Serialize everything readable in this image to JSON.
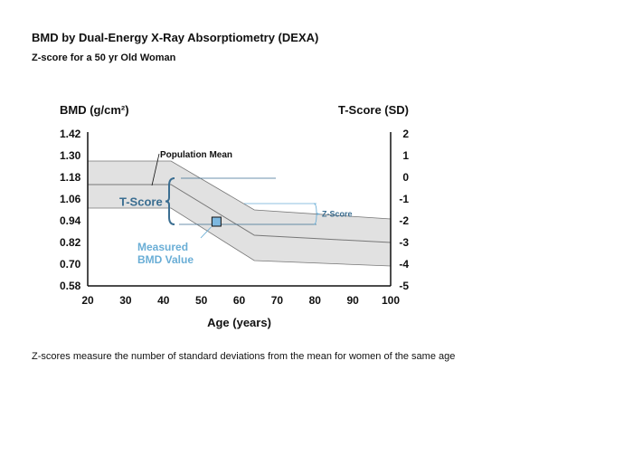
{
  "title": "BMD by Dual-Energy X-Ray Absorptiometry (DEXA)",
  "subtitle": "Z-score for a 50 yr Old Woman",
  "caption": "Z-scores measure the number of standard deviations from the mean for women of the same age",
  "colors": {
    "band_fill": "#e1e1e1",
    "band_stroke": "#777777",
    "accent_dark": "#3b6e91",
    "accent_light": "#6aaed6",
    "marker_fill": "#7db8e0"
  },
  "chart_data": {
    "type": "diagram",
    "xlabel": "Age (years)",
    "ylabel_left": "BMD (g/cm²)",
    "ylabel_right": "T-Score (SD)",
    "x_ticks": [
      "20",
      "30",
      "40",
      "50",
      "60",
      "70",
      "80",
      "90",
      "100"
    ],
    "y_left_ticks": [
      "1.42",
      "1.30",
      "1.18",
      "1.06",
      "0.94",
      "0.82",
      "0.70",
      "0.58"
    ],
    "y_right_ticks": [
      "2",
      "1",
      "0",
      "-1",
      "-2",
      "-3",
      "-4",
      "-5"
    ],
    "xlim": [
      20,
      100
    ],
    "ylim_left": [
      0.58,
      1.42
    ],
    "ylim_right": [
      -5,
      2
    ],
    "grid": false,
    "band_ages": [
      20,
      42,
      64,
      100
    ],
    "band_upper": [
      1.27,
      1.27,
      1.0,
      0.95
    ],
    "band_mean": [
      1.14,
      1.14,
      0.86,
      0.82
    ],
    "band_lower": [
      1.01,
      1.01,
      0.72,
      0.69
    ],
    "measured_point": {
      "age": 54,
      "bmd": 0.935
    },
    "young_adult_mean_bmd": 1.15,
    "age_matched_mean_bmd": 1.01,
    "measured_ref_bmd": 0.93,
    "annotations": {
      "population_mean": "Population Mean",
      "t_score": "T-Score",
      "z_score": "Z-Score",
      "measured_line1": "Measured",
      "measured_line2": "BMD Value"
    }
  }
}
